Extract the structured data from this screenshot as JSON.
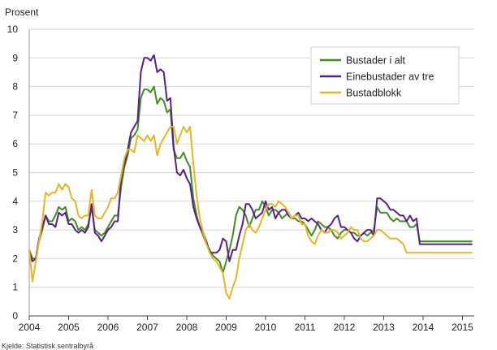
{
  "chart_data": {
    "type": "line",
    "title": "",
    "ylabel": "Prosent",
    "xlabel": "",
    "xlim": [
      2004.0,
      2015.3
    ],
    "ylim": [
      0,
      10
    ],
    "yticks": [
      0,
      1,
      2,
      3,
      4,
      5,
      6,
      7,
      8,
      9,
      10
    ],
    "xticks": [
      "2004",
      "2005",
      "2006",
      "2007",
      "2008",
      "2009",
      "2010",
      "2011",
      "2012",
      "2013",
      "2014",
      "2015"
    ],
    "grid": "horizontal",
    "legend_position": "top-right",
    "x": [
      2004.0,
      2004.083,
      2004.167,
      2004.25,
      2004.333,
      2004.417,
      2004.5,
      2004.583,
      2004.667,
      2004.75,
      2004.833,
      2004.917,
      2005.0,
      2005.083,
      2005.167,
      2005.25,
      2005.333,
      2005.417,
      2005.5,
      2005.583,
      2005.667,
      2005.75,
      2005.833,
      2005.917,
      2006.0,
      2006.083,
      2006.167,
      2006.25,
      2006.333,
      2006.417,
      2006.5,
      2006.583,
      2006.667,
      2006.75,
      2006.833,
      2006.917,
      2007.0,
      2007.083,
      2007.167,
      2007.25,
      2007.333,
      2007.417,
      2007.5,
      2007.583,
      2007.667,
      2007.75,
      2007.833,
      2007.917,
      2008.0,
      2008.083,
      2008.167,
      2008.25,
      2008.333,
      2008.417,
      2008.5,
      2008.583,
      2008.667,
      2008.75,
      2008.833,
      2008.917,
      2009.0,
      2009.083,
      2009.167,
      2009.25,
      2009.333,
      2009.417,
      2009.5,
      2009.583,
      2009.667,
      2009.75,
      2009.833,
      2009.917,
      2010.0,
      2010.083,
      2010.167,
      2010.25,
      2010.333,
      2010.417,
      2010.5,
      2010.583,
      2010.667,
      2010.75,
      2010.833,
      2010.917,
      2011.0,
      2011.083,
      2011.167,
      2011.25,
      2011.333,
      2011.417,
      2011.5,
      2011.583,
      2011.667,
      2011.75,
      2011.833,
      2011.917,
      2012.0,
      2012.083,
      2012.167,
      2012.25,
      2012.333,
      2012.417,
      2012.5,
      2012.583,
      2012.667,
      2012.75,
      2012.833,
      2012.917,
      2013.0,
      2013.083,
      2013.167,
      2013.25,
      2013.333,
      2013.417,
      2013.5,
      2013.583,
      2013.667,
      2013.75,
      2013.833,
      2013.917,
      2014.0,
      2014.083,
      2014.167,
      2014.25,
      2014.333,
      2014.417,
      2014.5,
      2014.583,
      2014.667,
      2014.75,
      2014.833,
      2014.917,
      2015.0,
      2015.083,
      2015.167,
      2015.25
    ],
    "series": [
      {
        "name": "Bustader i alt",
        "color": "#3f8f1f",
        "values": [
          2.3,
          2.0,
          2.0,
          2.6,
          3.0,
          3.5,
          3.3,
          3.3,
          3.5,
          3.8,
          3.7,
          3.8,
          3.3,
          3.4,
          3.3,
          3.0,
          3.1,
          3.0,
          3.2,
          3.8,
          3.0,
          2.9,
          2.8,
          2.9,
          3.1,
          3.3,
          3.5,
          3.5,
          4.5,
          5.2,
          5.6,
          6.2,
          6.3,
          6.5,
          7.6,
          7.9,
          7.9,
          7.8,
          8.0,
          7.4,
          7.6,
          7.5,
          7.1,
          7.2,
          5.8,
          5.5,
          5.5,
          5.7,
          5.4,
          5.2,
          4.1,
          3.5,
          3.1,
          2.8,
          2.5,
          2.3,
          2.1,
          2.0,
          1.9,
          1.5,
          1.9,
          2.3,
          2.8,
          3.5,
          3.8,
          3.7,
          3.5,
          3.1,
          3.4,
          3.7,
          3.7,
          4.0,
          3.8,
          3.5,
          3.7,
          3.7,
          3.6,
          3.4,
          3.5,
          3.6,
          3.4,
          3.4,
          3.3,
          3.3,
          3.2,
          3.0,
          2.8,
          3.0,
          3.3,
          3.2,
          3.1,
          3.1,
          3.0,
          2.8,
          2.7,
          2.9,
          3.0,
          3.0,
          2.9,
          2.9,
          2.8,
          2.8,
          2.9,
          2.8,
          2.9,
          3.0,
          3.8,
          3.6,
          3.6,
          3.6,
          3.4,
          3.3,
          3.4,
          3.3,
          3.3,
          3.3,
          3.1,
          3.1,
          3.2,
          2.6,
          2.6,
          2.6,
          2.6,
          2.6,
          2.6,
          2.6,
          2.6,
          2.6,
          2.6,
          2.6,
          2.6,
          2.6,
          2.6,
          2.6,
          2.6,
          2.6
        ]
      },
      {
        "name": "Einebustader av tre",
        "color": "#5b1f8c",
        "values": [
          2.2,
          1.9,
          2.0,
          2.7,
          3.1,
          3.5,
          3.2,
          3.2,
          3.1,
          3.6,
          3.5,
          3.6,
          3.2,
          3.2,
          3.0,
          2.9,
          3.0,
          2.9,
          3.1,
          3.9,
          2.9,
          2.8,
          2.6,
          2.8,
          3.0,
          3.1,
          3.3,
          3.3,
          4.8,
          5.3,
          5.8,
          6.4,
          6.6,
          6.8,
          8.5,
          9.0,
          9.0,
          8.9,
          9.1,
          8.5,
          8.6,
          8.5,
          7.5,
          7.6,
          5.9,
          5.0,
          4.9,
          5.1,
          4.8,
          4.6,
          3.8,
          3.4,
          3.1,
          2.9,
          2.6,
          2.2,
          2.2,
          2.2,
          2.3,
          2.7,
          2.6,
          1.9,
          2.3,
          2.3,
          2.8,
          3.2,
          3.9,
          3.9,
          3.7,
          3.4,
          3.5,
          3.6,
          4.0,
          3.7,
          3.8,
          3.4,
          3.6,
          3.7,
          3.7,
          3.5,
          3.4,
          3.5,
          3.6,
          3.4,
          3.4,
          3.3,
          3.4,
          3.3,
          3.2,
          3.0,
          2.9,
          3.1,
          3.2,
          3.4,
          3.5,
          3.1,
          3.1,
          3.0,
          2.9,
          2.7,
          2.6,
          2.8,
          2.9,
          3.0,
          3.0,
          2.8,
          4.1,
          4.1,
          4.0,
          3.9,
          3.7,
          3.7,
          3.6,
          3.5,
          3.5,
          3.3,
          3.5,
          3.3,
          3.4,
          2.5,
          2.5,
          2.5,
          2.5,
          2.5,
          2.5,
          2.5,
          2.5,
          2.5,
          2.5,
          2.5,
          2.5,
          2.5,
          2.5,
          2.5,
          2.5,
          2.5
        ]
      },
      {
        "name": "Bustadblokk",
        "color": "#e8b523",
        "values": [
          2.3,
          1.2,
          1.9,
          2.6,
          3.3,
          4.3,
          4.2,
          4.3,
          4.3,
          4.6,
          4.4,
          4.6,
          4.5,
          4.1,
          4.0,
          3.5,
          3.4,
          3.5,
          3.5,
          4.4,
          3.5,
          3.4,
          3.4,
          3.6,
          3.8,
          4.1,
          4.1,
          4.3,
          4.9,
          5.5,
          5.8,
          5.8,
          5.7,
          6.3,
          6.2,
          6.1,
          6.3,
          6.1,
          6.3,
          5.6,
          6.0,
          6.2,
          6.4,
          6.6,
          6.6,
          6.0,
          6.3,
          6.6,
          6.4,
          6.6,
          5.3,
          4.2,
          3.4,
          2.9,
          2.5,
          2.2,
          2.0,
          1.9,
          1.7,
          1.5,
          0.8,
          0.6,
          1.0,
          1.3,
          2.0,
          2.5,
          3.0,
          3.2,
          3.0,
          2.9,
          3.1,
          3.4,
          3.7,
          3.9,
          3.9,
          3.8,
          4.0,
          3.9,
          3.8,
          3.6,
          3.4,
          3.5,
          3.5,
          3.2,
          3.2,
          2.8,
          2.6,
          2.5,
          2.8,
          3.0,
          2.9,
          2.9,
          3.0,
          3.0,
          2.9,
          2.7,
          2.8,
          2.9,
          3.1,
          3.0,
          3.0,
          2.7,
          2.6,
          2.6,
          2.7,
          2.8,
          3.0,
          3.0,
          2.9,
          2.8,
          2.7,
          2.7,
          2.7,
          2.6,
          2.5,
          2.2,
          2.2,
          2.2,
          2.2,
          2.2,
          2.2,
          2.2,
          2.2,
          2.2,
          2.2,
          2.2,
          2.2,
          2.2,
          2.2,
          2.2,
          2.2,
          2.2,
          2.2,
          2.2,
          2.2,
          2.2
        ]
      }
    ]
  },
  "footer": {
    "source_text": "Kjelde: Statistisk sentralbyrå"
  }
}
